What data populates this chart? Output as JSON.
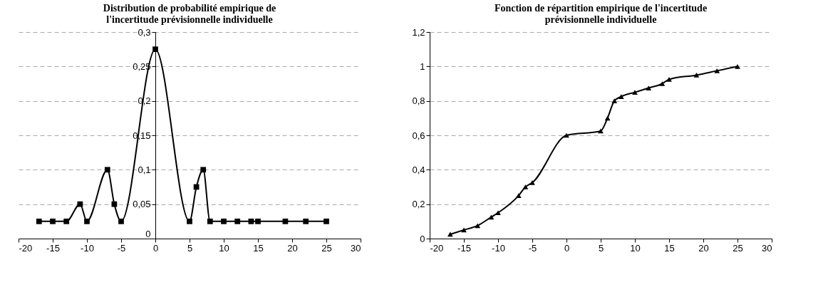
{
  "chart_data": [
    {
      "type": "line",
      "title": "Distribution de probabilité empirique de\nl'incertitude prévisionnelle individuelle",
      "x": [
        -17,
        -15,
        -13,
        -11,
        -10,
        -7,
        -6,
        -5,
        0,
        5,
        6,
        7,
        8,
        10,
        12,
        14,
        15,
        19,
        22,
        25
      ],
      "series": [
        {
          "color": "#000000",
          "values": [
            0.025,
            0.025,
            0.025,
            0.05,
            0.025,
            0.1,
            0.05,
            0.025,
            0.275,
            0.025,
            0.075,
            0.1,
            0.025,
            0.025,
            0.025,
            0.025,
            0.025,
            0.025,
            0.025,
            0.025
          ]
        }
      ],
      "xlim": [
        -20,
        30
      ],
      "xticks": [
        -20,
        -15,
        -10,
        -5,
        0,
        5,
        10,
        15,
        20,
        25,
        30
      ],
      "ylim": [
        0,
        0.3
      ],
      "yticks": [
        0,
        {
          "value": 0.05,
          "label": "0,05"
        },
        {
          "value": 0.1,
          "label": "0,1"
        },
        {
          "value": 0.15,
          "label": "0,15"
        },
        {
          "value": 0.2,
          "label": "0,2"
        },
        {
          "value": 0.25,
          "label": "0,25"
        },
        {
          "value": 0.3,
          "label": "0,3"
        }
      ],
      "grid": "y",
      "legend": false,
      "marker": "square",
      "line_style": "solid"
    },
    {
      "type": "line",
      "title": "Fonction de répartition empirique de l'incertitude\nprévisionnelle individuelle",
      "x": [
        -17,
        -15,
        -13,
        -11,
        -10,
        -7,
        -6,
        -5,
        0,
        5,
        6,
        7,
        8,
        10,
        12,
        14,
        15,
        19,
        22,
        25
      ],
      "series": [
        {
          "color": "#000000",
          "values": [
            0.025,
            0.05,
            0.075,
            0.125,
            0.15,
            0.25,
            0.3,
            0.325,
            0.6,
            0.625,
            0.7,
            0.8,
            0.825,
            0.85,
            0.875,
            0.9,
            0.925,
            0.95,
            0.975,
            1.0
          ]
        }
      ],
      "xlim": [
        -20,
        30
      ],
      "xticks": [
        -20,
        -15,
        -10,
        -5,
        0,
        5,
        10,
        15,
        20,
        25,
        30
      ],
      "ylim": [
        0,
        1.2
      ],
      "yticks": [
        0,
        {
          "value": 0.2,
          "label": "0,2"
        },
        {
          "value": 0.4,
          "label": "0,4"
        },
        {
          "value": 0.6,
          "label": "0,6"
        },
        {
          "value": 0.8,
          "label": "0,8"
        },
        1,
        {
          "value": 1.2,
          "label": "1,2"
        }
      ],
      "grid": "y",
      "legend": false,
      "marker": "triangle",
      "line_style": "solid"
    }
  ]
}
